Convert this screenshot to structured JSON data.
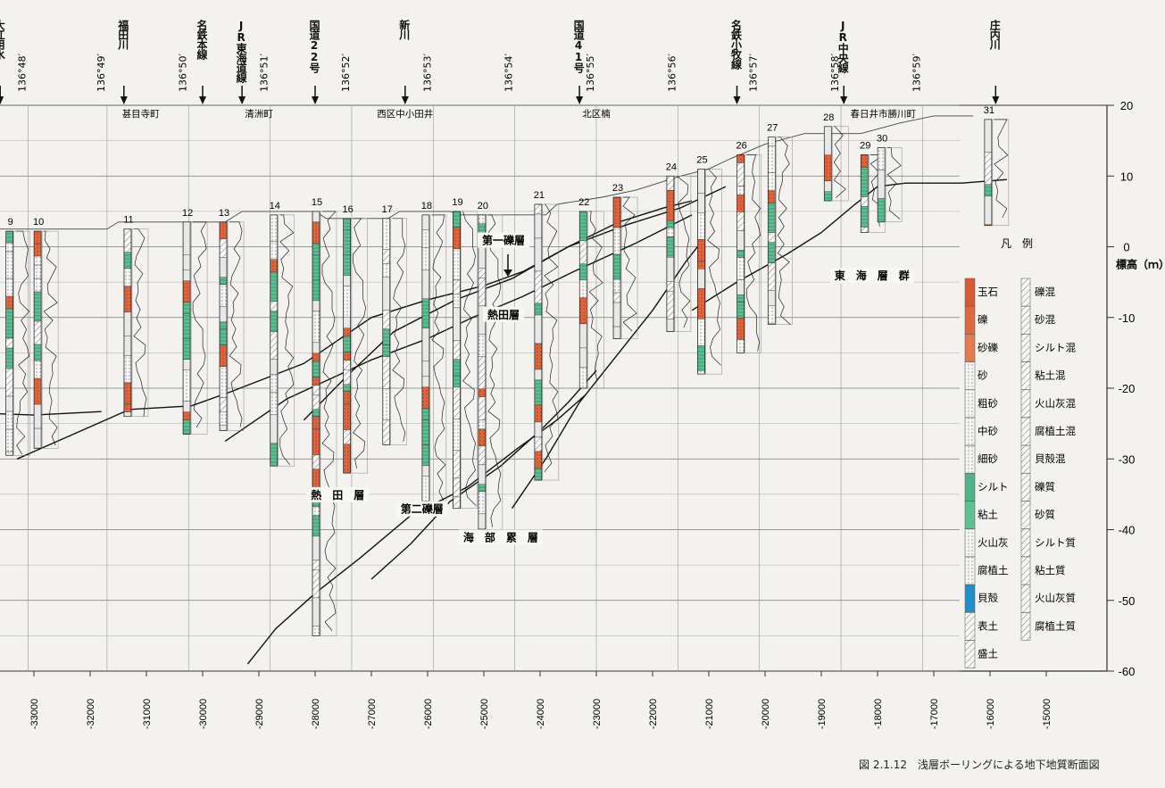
{
  "caption": "図 2.1.12　浅層ボーリングによる地下地質断面図",
  "y_axis": {
    "label": "標高（ｍ）",
    "ticks": [
      20,
      10,
      0,
      -10,
      -20,
      -30,
      -40,
      -50,
      -60
    ]
  },
  "x_axis": {
    "ticks": [
      -33000,
      -32000,
      -31000,
      -30000,
      -29000,
      -28000,
      -27000,
      -26000,
      -25000,
      -24000,
      -23000,
      -22000,
      -21000,
      -20000,
      -19000,
      -18000,
      -17000,
      -16000,
      -15000
    ]
  },
  "longitudes": [
    {
      "label": "136°48′",
      "x": -33100
    },
    {
      "label": "136°49′",
      "x": -31700
    },
    {
      "label": "136°50′",
      "x": -30250
    },
    {
      "label": "136°51′",
      "x": -28800
    },
    {
      "label": "136°52′",
      "x": -27350
    },
    {
      "label": "136°53′",
      "x": -25900
    },
    {
      "label": "136°54′",
      "x": -24450
    },
    {
      "label": "136°55′",
      "x": -23000
    },
    {
      "label": "136°56′",
      "x": -21550
    },
    {
      "label": "136°57′",
      "x": -20100
    },
    {
      "label": "136°58′",
      "x": -18650
    },
    {
      "label": "136°59′",
      "x": -17200
    }
  ],
  "landmarks": [
    {
      "label": "大江用水",
      "x": -33600
    },
    {
      "label": "福田川",
      "x": -31400
    },
    {
      "label": "名鉄本線",
      "x": -30000
    },
    {
      "label": "JR東海道線",
      "x": -29300
    },
    {
      "label": "国道22号",
      "x": -28000
    },
    {
      "label": "新川",
      "x": -26400
    },
    {
      "label": "国道41号",
      "x": -23300
    },
    {
      "label": "名鉄小牧線",
      "x": -20500
    },
    {
      "label": "JR中央線",
      "x": -18600
    },
    {
      "label": "庄内川",
      "x": -15900
    }
  ],
  "towns": [
    {
      "label": "甚目寺町",
      "x": -31100
    },
    {
      "label": "清洲町",
      "x": -29000
    },
    {
      "label": "西区中小田井",
      "x": -26400
    },
    {
      "label": "北区楠",
      "x": -23000
    },
    {
      "label": "春日井市勝川町",
      "x": -17900
    }
  ],
  "strata_labels": [
    {
      "label": "第一礫層",
      "x": -24650,
      "y": 0.5
    },
    {
      "label": "熱田層",
      "x": -24650,
      "y": -10
    },
    {
      "label": "熱　田　層",
      "x": -27600,
      "y": -35.5
    },
    {
      "label": "第二礫層",
      "x": -26100,
      "y": -37.5
    },
    {
      "label": "海　部　累　層",
      "x": -24700,
      "y": -41.5
    },
    {
      "label": "東　海　層　群",
      "x": -18100,
      "y": -4.5
    }
  ],
  "borings": [
    {
      "no": "9",
      "x": -33450,
      "top": 2.2,
      "bottom": -29.5
    },
    {
      "no": "10",
      "x": -32950,
      "top": 2.2,
      "bottom": -28.5
    },
    {
      "no": "11",
      "x": -31350,
      "top": 2.5,
      "bottom": -24
    },
    {
      "no": "12",
      "x": -30300,
      "top": 3.5,
      "bottom": -26.5
    },
    {
      "no": "13",
      "x": -29650,
      "top": 3.5,
      "bottom": -26
    },
    {
      "no": "14",
      "x": -28750,
      "top": 4.5,
      "bottom": -31
    },
    {
      "no": "15",
      "x": -28000,
      "top": 5,
      "bottom": -55
    },
    {
      "no": "16",
      "x": -27450,
      "top": 4,
      "bottom": -32
    },
    {
      "no": "17",
      "x": -26750,
      "top": 4,
      "bottom": -28
    },
    {
      "no": "18",
      "x": -26050,
      "top": 4.5,
      "bottom": -36
    },
    {
      "no": "19",
      "x": -25500,
      "top": 5,
      "bottom": -37
    },
    {
      "no": "20",
      "x": -25050,
      "top": 4.5,
      "bottom": -40
    },
    {
      "no": "21",
      "x": -24050,
      "top": 6,
      "bottom": -33
    },
    {
      "no": "22",
      "x": -23250,
      "top": 5,
      "bottom": -20
    },
    {
      "no": "23",
      "x": -22650,
      "top": 7,
      "bottom": -13
    },
    {
      "no": "24",
      "x": -21700,
      "top": 10,
      "bottom": -12
    },
    {
      "no": "25",
      "x": -21150,
      "top": 11,
      "bottom": -18
    },
    {
      "no": "26",
      "x": -20450,
      "top": 13,
      "bottom": -15
    },
    {
      "no": "27",
      "x": -19900,
      "top": 15.5,
      "bottom": -11
    },
    {
      "no": "28",
      "x": -18900,
      "top": 17,
      "bottom": 6.5
    },
    {
      "no": "29",
      "x": -18250,
      "top": 13,
      "bottom": 2
    },
    {
      "no": "30",
      "x": -17950,
      "top": 14,
      "bottom": 3.5
    },
    {
      "no": "31",
      "x": -16050,
      "top": 18,
      "bottom": 3
    }
  ],
  "boundaries": [
    {
      "name": "ground",
      "points": [
        [
          -34000,
          2.5
        ],
        [
          -31700,
          2.5
        ],
        [
          -31500,
          3.5
        ],
        [
          -29600,
          3.5
        ],
        [
          -29300,
          5
        ],
        [
          -28000,
          5
        ],
        [
          -27800,
          4
        ],
        [
          -26700,
          4
        ],
        [
          -26500,
          5
        ],
        [
          -25600,
          5
        ],
        [
          -25400,
          4.5
        ],
        [
          -23900,
          4.5
        ],
        [
          -23700,
          6
        ],
        [
          -22900,
          7
        ],
        [
          -22300,
          8
        ],
        [
          -21500,
          10
        ],
        [
          -21000,
          11
        ],
        [
          -20600,
          12.5
        ],
        [
          -20000,
          14.5
        ],
        [
          -19300,
          16
        ],
        [
          -18300,
          16
        ],
        [
          -17600,
          17.5
        ],
        [
          -17000,
          18.5
        ],
        [
          -16300,
          18.5
        ]
      ]
    },
    {
      "name": "upper-a",
      "points": [
        [
          -33300,
          -30
        ],
        [
          -31300,
          -23
        ],
        [
          -30200,
          -22.5
        ],
        [
          -29500,
          -20.5
        ],
        [
          -28200,
          -16.5
        ],
        [
          -27000,
          -10
        ],
        [
          -26000,
          -7.5
        ],
        [
          -25000,
          -5.5
        ],
        [
          -24300,
          -3.5
        ],
        [
          -23500,
          0
        ],
        [
          -22500,
          3
        ],
        [
          -21500,
          5.5
        ],
        [
          -20700,
          8.5
        ]
      ]
    },
    {
      "name": "upper-b",
      "points": [
        [
          -34000,
          -23.5
        ],
        [
          -33000,
          -23.8
        ],
        [
          -31800,
          -23.3
        ]
      ]
    },
    {
      "name": "middle",
      "points": [
        [
          -29600,
          -27.5
        ],
        [
          -28500,
          -21.5
        ],
        [
          -27000,
          -16
        ],
        [
          -26000,
          -13
        ],
        [
          -25200,
          -10
        ],
        [
          -24300,
          -7
        ],
        [
          -23400,
          -3.5
        ],
        [
          -22300,
          0.5
        ],
        [
          -21300,
          4.5
        ]
      ]
    },
    {
      "name": "tokai",
      "points": [
        [
          -28200,
          -24.5
        ],
        [
          -27400,
          -18
        ],
        [
          -26600,
          -12
        ],
        [
          -25500,
          -7.5
        ],
        [
          -24500,
          -4.5
        ],
        [
          -23500,
          0
        ],
        [
          -22600,
          3.5
        ],
        [
          -21800,
          5.5
        ],
        [
          -21300,
          6.5
        ]
      ]
    },
    {
      "name": "tokai-top",
      "points": [
        [
          -21300,
          -9
        ],
        [
          -20500,
          -5
        ],
        [
          -19600,
          -1
        ],
        [
          -19000,
          2
        ],
        [
          -18400,
          6
        ],
        [
          -18000,
          8.5
        ],
        [
          -17500,
          9
        ],
        [
          -16500,
          9
        ],
        [
          -15700,
          9.5
        ]
      ]
    },
    {
      "name": "lower-a",
      "points": [
        [
          -29200,
          -59
        ],
        [
          -28700,
          -54
        ],
        [
          -28000,
          -49
        ],
        [
          -27200,
          -44
        ],
        [
          -26300,
          -38
        ],
        [
          -25300,
          -34
        ],
        [
          -24400,
          -28.5
        ],
        [
          -23700,
          -24.5
        ],
        [
          -23200,
          -21
        ]
      ]
    },
    {
      "name": "lower-b",
      "points": [
        [
          -27000,
          -47
        ],
        [
          -26300,
          -42
        ],
        [
          -25600,
          -36
        ],
        [
          -24700,
          -31
        ],
        [
          -24000,
          -26
        ],
        [
          -23500,
          -22
        ],
        [
          -23000,
          -17.5
        ]
      ]
    },
    {
      "name": "lower-c",
      "points": [
        [
          -24500,
          -37
        ],
        [
          -23900,
          -30
        ],
        [
          -23300,
          -22
        ],
        [
          -22600,
          -15
        ],
        [
          -22000,
          -9
        ],
        [
          -21400,
          -2
        ],
        [
          -21100,
          1
        ]
      ]
    }
  ],
  "legend": {
    "title": "凡　例",
    "solid": [
      {
        "label": "玉石",
        "color": "#d95a33"
      },
      {
        "label": "礫",
        "color": "#e06a40"
      },
      {
        "label": "砂礫",
        "color": "#e37a52"
      },
      {
        "label": "砂",
        "color": "#f2f2f2"
      },
      {
        "label": "粗砂",
        "color": "#e4e4e4"
      },
      {
        "label": "中砂",
        "color": "#d8d8d8"
      },
      {
        "label": "細砂",
        "color": "#ececec"
      },
      {
        "label": "シルト",
        "color": "#4fb487"
      },
      {
        "label": "粘土",
        "color": "#5fc094"
      },
      {
        "label": "火山灰",
        "color": "#f4f4f4"
      },
      {
        "label": "腐植土",
        "color": "#fafafa"
      },
      {
        "label": "貝殻",
        "color": "#1f8ec9"
      },
      {
        "label": "表土",
        "color": "#ffffff"
      },
      {
        "label": "盛土",
        "color": "#ffffff"
      }
    ],
    "mixed": [
      "礫混",
      "砂混",
      "シルト混",
      "粘土混",
      "火山灰混",
      "腐植土混",
      "貝殻混",
      "礫質",
      "砂質",
      "シルト質",
      "粘土質",
      "火山灰質",
      "腐植土質"
    ]
  }
}
